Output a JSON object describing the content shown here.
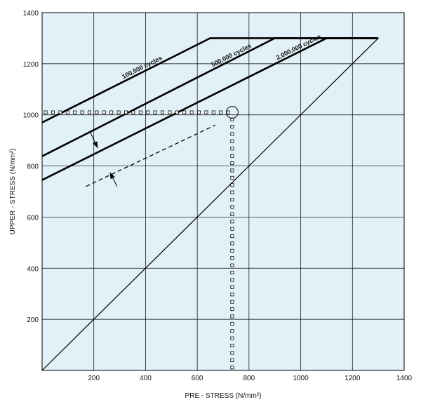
{
  "chart_data": {
    "type": "line",
    "title": "",
    "xlabel": "PRE - STRESS (N/mm²)",
    "ylabel": "UPPER - STRESS (N/mm²)",
    "xlim": [
      0,
      1400
    ],
    "ylim": [
      0,
      1400
    ],
    "x_ticks": [
      200,
      400,
      600,
      800,
      1000,
      1200,
      1400
    ],
    "y_ticks": [
      200,
      400,
      600,
      800,
      1000,
      1200,
      1400
    ],
    "grid": true,
    "colors": {
      "plot_background": "#e1f1f7",
      "line": "#000000"
    },
    "series": [
      {
        "name": "100,000 cycles",
        "style": "thick",
        "points": [
          [
            0,
            970
          ],
          [
            650,
            1300
          ],
          [
            1300,
            1300
          ]
        ]
      },
      {
        "name": "500,000 cycles",
        "style": "thick",
        "points": [
          [
            0,
            838
          ],
          [
            900,
            1300
          ],
          [
            1300,
            1300
          ]
        ]
      },
      {
        "name": "2,000,000 cycles",
        "style": "thick",
        "points": [
          [
            0,
            745
          ],
          [
            1100,
            1300
          ],
          [
            1300,
            1300
          ]
        ]
      },
      {
        "style": "thin",
        "points": [
          [
            0,
            0
          ],
          [
            1300,
            1300
          ]
        ]
      },
      {
        "style": "dashed",
        "points": [
          [
            170,
            720
          ],
          [
            670,
            960
          ]
        ]
      }
    ],
    "reading": {
      "x": 735,
      "y": 1010
    },
    "arrows": [
      {
        "from": [
          185,
          935
        ],
        "to": [
          215,
          870
        ]
      },
      {
        "from": [
          290,
          720
        ],
        "to": [
          262,
          775
        ]
      }
    ]
  }
}
